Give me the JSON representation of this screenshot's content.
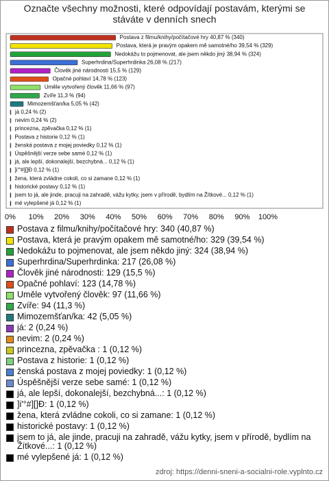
{
  "chart_data": {
    "type": "bar",
    "title": "Označte všechny možnosti, které odpovídají postavám, kterými se stáváte v denních snech",
    "source": "zdroj: https://denni-sneni-a-socialni-role.vyplnto.cz",
    "legend_labels": [
      "Postava z filmu/knihy/počítačové hry: 340 (40,87 %)",
      "Postava, která je pravým opakem mě samotné/ho: 329 (39,54 %)",
      "Nedokážu to pojmenovat, ale jsem někdo jiný: 324 (38,94 %)",
      "Superhrdina/Superhrdinka: 217 (26,08 %)",
      "Člověk jiné národnosti: 129 (15,5 %)",
      "Opačné pohlaví: 123 (14,78 %)",
      "Uměle vytvořený člověk: 97 (11,66 %)",
      "Zvíře: 94 (11,3 %)",
      "Mimozemšťan/ka: 42 (5,05 %)",
      "já: 2 (0,24 %)",
      "nevim: 2 (0,24 %)",
      "princezna, zpěvačka : 1 (0,12 %)",
      "Postava z historie: 1 (0,12 %)",
      "ženská postava z mojej poviedky: 1 (0,12 %)",
      "Úspěšnější verze sebe samé: 1 (0,12 %)",
      "já, ale lepší, dokonalejší, bezchybná...: 1 (0,12 %)",
      "]i'°#][]Ð: 1 (0,12 %)",
      "žena, která zvládne cokoli, co si zamane: 1 (0,12 %)",
      "historické postavy: 1 (0,12 %)",
      "jsem to já, ale jinde, pracuji na zahradě, vážu kytky, jsem v přírodě, bydlím na Žítkové...: 1 (0,12 %)",
      "mé vylepšené já: 1 (0,12 %)"
    ],
    "values": [
      40.87,
      39.54,
      38.94,
      26.08,
      15.5,
      14.78,
      11.66,
      11.3,
      5.05,
      0.24,
      0.24,
      0.12,
      0.12,
      0.12,
      0.12,
      0.12,
      0.12,
      0.12,
      0.12,
      0.12,
      0.12
    ],
    "value_labels": [
      "Postava z filmu/knihy/počítačové hry 40,87 % (340)",
      "Postava, která je pravým opakem mě samotné/ho 39,54 % (329)",
      "Nedokážu to pojmenovat, ale jsem někdo jiný 38,94 % (324)",
      "Superhrdina/Superhrdinka 26,08 % (217)",
      "Člověk jiné národnosti 15,5 % (129)",
      "Opačné pohlaví 14,78 % (123)",
      "Uměle vytvořený člověk 11,66 % (97)",
      "Zvíře 11,3 % (94)",
      "Mimozemšťan/ka 5,05 % (42)",
      "já 0,24 % (2)",
      "nevim 0,24 % (2)",
      "princezna, zpěvačka  0,12 % (1)",
      "Postava z historie 0,12 % (1)",
      "ženská postava z mojej poviedky 0,12 % (1)",
      "Úspěšnější verze sebe samé 0,12 % (1)",
      "já, ale lepší, dokonalejší, bezchybná... 0,12 % (1)",
      "]i'°#][]Ð 0,12 % (1)",
      "žena, která zvládne cokoli, co si zamane 0,12 % (1)",
      "historické postavy 0,12 % (1)",
      "jsem to já, ale jinde, pracuji na zahradě, vážu kytky, jsem v přírodě, bydlím na Žítkové... 0,12 % (1)",
      "mé vylepšené já 0,12 % (1)"
    ],
    "colors": [
      "#c0301f",
      "#f2e400",
      "#22a33a",
      "#3c6fd6",
      "#b020c8",
      "#e0501a",
      "#8fe06a",
      "#2fa84a",
      "#1f7a80",
      "#8a38b8",
      "#e08a1a",
      "#c8c820",
      "#7fd07f",
      "#4a7fd0",
      "#6a8ad0",
      "#000000",
      "#000000",
      "#000000",
      "#000000",
      "#000000",
      "#000000"
    ],
    "xlim": [
      0,
      100
    ],
    "xticks": [
      {
        "value": 0,
        "label": "0%"
      },
      {
        "value": 10,
        "label": "10%"
      },
      {
        "value": 20,
        "label": "20%"
      },
      {
        "value": 30,
        "label": "30%"
      },
      {
        "value": 40,
        "label": "40%"
      },
      {
        "value": 50,
        "label": "50%"
      },
      {
        "value": 60,
        "label": "60%"
      },
      {
        "value": 70,
        "label": "70%"
      },
      {
        "value": 80,
        "label": "80%"
      },
      {
        "value": 90,
        "label": "90%"
      },
      {
        "value": 100,
        "label": "100%"
      }
    ]
  }
}
